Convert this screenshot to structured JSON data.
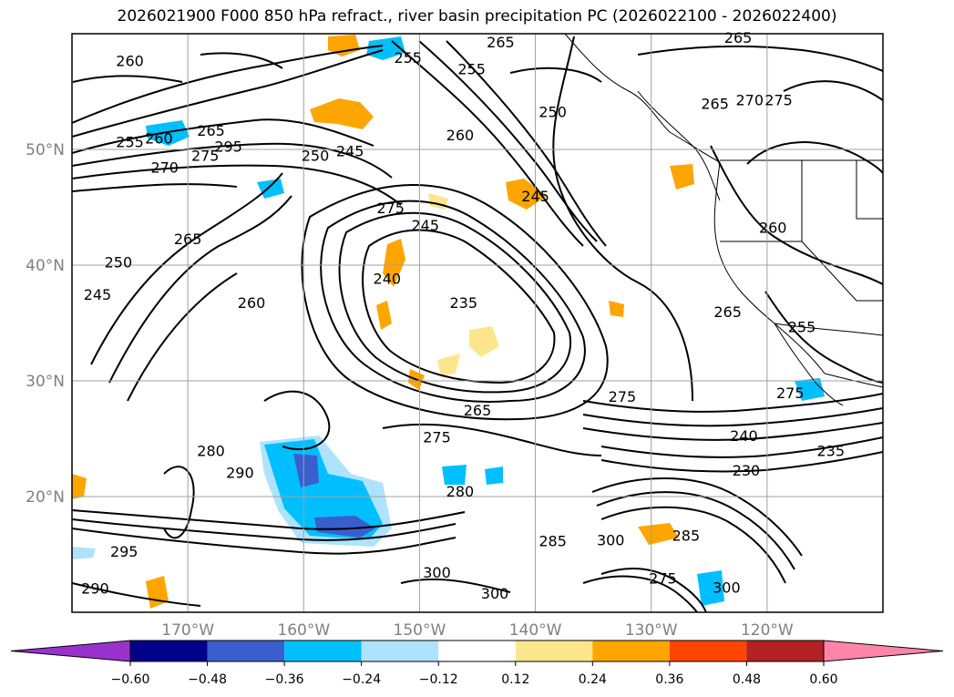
{
  "title": "2026021900 F000 850 hPa refract., river basin precipitation PC (2026022100 - 2026022400)",
  "map": {
    "lon_range": [
      -180,
      -110
    ],
    "lat_range": [
      10,
      60
    ],
    "grid": true,
    "lon_ticks": [
      {
        "value": -170,
        "label": "170°W"
      },
      {
        "value": -160,
        "label": "160°W"
      },
      {
        "value": -150,
        "label": "150°W"
      },
      {
        "value": -140,
        "label": "140°W"
      },
      {
        "value": -130,
        "label": "130°W"
      },
      {
        "value": -120,
        "label": "120°W"
      }
    ],
    "lat_ticks": [
      {
        "value": 50,
        "label": "50°N"
      },
      {
        "value": 40,
        "label": "40°N"
      },
      {
        "value": 30,
        "label": "30°N"
      },
      {
        "value": 20,
        "label": "20°N"
      }
    ],
    "contour_labels": [
      {
        "text": "260",
        "lon": -175,
        "lat": 57.2
      },
      {
        "text": "265",
        "lon": -143,
        "lat": 58.8
      },
      {
        "text": "255",
        "lon": -145.5,
        "lat": 56.5
      },
      {
        "text": "255",
        "lon": -151,
        "lat": 57.5
      },
      {
        "text": "265",
        "lon": -122.5,
        "lat": 59.2
      },
      {
        "text": "250",
        "lon": -138.5,
        "lat": 52.8
      },
      {
        "text": "265",
        "lon": -124.5,
        "lat": 53.5
      },
      {
        "text": "270",
        "lon": -121.5,
        "lat": 53.8
      },
      {
        "text": "275",
        "lon": -119,
        "lat": 53.8
      },
      {
        "text": "255",
        "lon": -175,
        "lat": 50.2
      },
      {
        "text": "260",
        "lon": -172.5,
        "lat": 50.5
      },
      {
        "text": "265",
        "lon": -168,
        "lat": 51.2
      },
      {
        "text": "270",
        "lon": -172,
        "lat": 48
      },
      {
        "text": "275",
        "lon": -168.5,
        "lat": 49
      },
      {
        "text": "295",
        "lon": -166.5,
        "lat": 49.8
      },
      {
        "text": "250",
        "lon": -159,
        "lat": 49
      },
      {
        "text": "245",
        "lon": -156,
        "lat": 49.4
      },
      {
        "text": "260",
        "lon": -146.5,
        "lat": 50.8
      },
      {
        "text": "245",
        "lon": -140,
        "lat": 45.5
      },
      {
        "text": "275",
        "lon": -152.5,
        "lat": 44.5
      },
      {
        "text": "245",
        "lon": -149.5,
        "lat": 43
      },
      {
        "text": "265",
        "lon": -170,
        "lat": 41.8
      },
      {
        "text": "250",
        "lon": -176,
        "lat": 39.8
      },
      {
        "text": "245",
        "lon": -177.8,
        "lat": 37
      },
      {
        "text": "260",
        "lon": -164.5,
        "lat": 36.3
      },
      {
        "text": "240",
        "lon": -152.8,
        "lat": 38.4
      },
      {
        "text": "235",
        "lon": -146.2,
        "lat": 36.3
      },
      {
        "text": "260",
        "lon": -119.5,
        "lat": 42.8
      },
      {
        "text": "265",
        "lon": -123.4,
        "lat": 35.5
      },
      {
        "text": "255",
        "lon": -117,
        "lat": 34.2
      },
      {
        "text": "275",
        "lon": -132.5,
        "lat": 28.2
      },
      {
        "text": "275",
        "lon": -118,
        "lat": 28.5
      },
      {
        "text": "265",
        "lon": -145,
        "lat": 27
      },
      {
        "text": "275",
        "lon": -148.5,
        "lat": 24.7
      },
      {
        "text": "240",
        "lon": -122,
        "lat": 24.8
      },
      {
        "text": "235",
        "lon": -114.5,
        "lat": 23.5
      },
      {
        "text": "230",
        "lon": -121.8,
        "lat": 21.8
      },
      {
        "text": "280",
        "lon": -168,
        "lat": 23.5
      },
      {
        "text": "290",
        "lon": -165.5,
        "lat": 21.6
      },
      {
        "text": "280",
        "lon": -146.5,
        "lat": 20
      },
      {
        "text": "285",
        "lon": -138.5,
        "lat": 15.7
      },
      {
        "text": "300",
        "lon": -133.5,
        "lat": 15.8
      },
      {
        "text": "285",
        "lon": -127,
        "lat": 16.2
      },
      {
        "text": "295",
        "lon": -175.5,
        "lat": 14.8
      },
      {
        "text": "290",
        "lon": -178,
        "lat": 11.6
      },
      {
        "text": "300",
        "lon": -148.5,
        "lat": 13
      },
      {
        "text": "300",
        "lon": -143.5,
        "lat": 11.2
      },
      {
        "text": "275",
        "lon": -129,
        "lat": 12.5
      },
      {
        "text": "300",
        "lon": -123.5,
        "lat": 11.7
      }
    ]
  },
  "colorbar": {
    "levels": [
      "-0.60",
      "−0.48",
      "−0.36",
      "−0.24",
      "−0.12",
      "0.12",
      "0.24",
      "0.36",
      "0.48",
      "0.60"
    ],
    "labels": [
      "−0.60",
      "−0.48",
      "−0.36",
      "−0.24",
      "−0.12",
      "0.12",
      "0.24",
      "0.36",
      "0.48",
      "0.60"
    ],
    "colors": [
      "#9932cc",
      "#00008b",
      "#3a5fcd",
      "#00bfff",
      "#aee3ff",
      "#ffffff",
      "#fce68c",
      "#ffa500",
      "#ff4500",
      "#b22222",
      "#ff85a8"
    ]
  },
  "shading_colors": {
    "neg_light": "#aee3ff",
    "neg_mid": "#00bfff",
    "neg_strong": "#3a5fcd",
    "neg_max": "#00008b",
    "pos_light": "#fce68c",
    "pos_mid": "#ffa500"
  }
}
